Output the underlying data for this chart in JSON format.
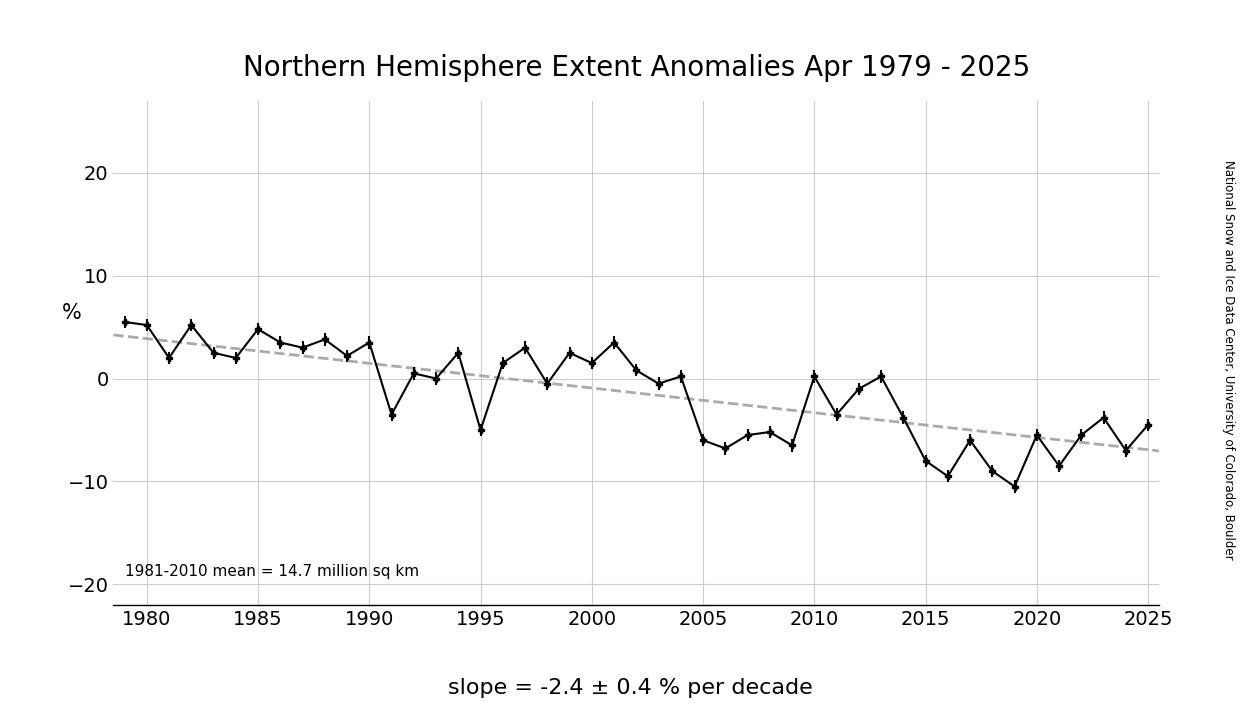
{
  "title": "Northern Hemisphere Extent Anomalies Apr 1979 - 2025",
  "ylabel": "%",
  "slope_text": "slope = -2.4 ± 0.4 % per decade",
  "mean_text": "1981-2010 mean = 14.7 million sq km",
  "side_label": "National Snow and Ice Data Center, University of Colorado, Boulder",
  "background_color": "#ffffff",
  "years": [
    1979,
    1980,
    1981,
    1982,
    1983,
    1984,
    1985,
    1986,
    1987,
    1988,
    1989,
    1990,
    1991,
    1992,
    1993,
    1994,
    1995,
    1996,
    1997,
    1998,
    1999,
    2000,
    2001,
    2002,
    2003,
    2004,
    2005,
    2006,
    2007,
    2008,
    2009,
    2010,
    2011,
    2012,
    2013,
    2014,
    2015,
    2016,
    2017,
    2018,
    2019,
    2020,
    2021,
    2022,
    2023,
    2024,
    2025
  ],
  "values": [
    5.5,
    5.2,
    2.0,
    5.2,
    2.5,
    2.0,
    4.8,
    3.5,
    3.0,
    3.8,
    2.2,
    3.5,
    -3.5,
    0.5,
    0.0,
    2.5,
    -5.0,
    1.5,
    3.0,
    -0.5,
    2.5,
    1.5,
    3.5,
    0.8,
    -0.5,
    0.2,
    -6.0,
    -6.8,
    -5.5,
    -5.2,
    -6.5,
    0.2,
    -3.5,
    -1.0,
    0.2,
    -3.8,
    -8.0,
    -9.5,
    -6.0,
    -9.0,
    -10.5,
    -5.5,
    -8.5,
    -5.5,
    -3.8,
    -7.0,
    -4.5
  ],
  "yerr": [
    0.6,
    0.6,
    0.6,
    0.6,
    0.6,
    0.6,
    0.6,
    0.6,
    0.6,
    0.6,
    0.6,
    0.6,
    0.6,
    0.6,
    0.6,
    0.6,
    0.6,
    0.6,
    0.6,
    0.6,
    0.6,
    0.6,
    0.6,
    0.6,
    0.6,
    0.6,
    0.6,
    0.6,
    0.6,
    0.6,
    0.6,
    0.6,
    0.6,
    0.6,
    0.6,
    0.6,
    0.6,
    0.6,
    0.6,
    0.6,
    0.6,
    0.6,
    0.6,
    0.6,
    0.6,
    0.6,
    0.6
  ],
  "line_color": "#000000",
  "trend_color": "#aaaaaa",
  "ylim": [
    -22,
    27
  ],
  "yticks": [
    -20,
    -10,
    0,
    10,
    20
  ],
  "xlim": [
    1978.5,
    2025.5
  ],
  "xticks": [
    1980,
    1985,
    1990,
    1995,
    2000,
    2005,
    2010,
    2015,
    2020,
    2025
  ],
  "slope_per_decade": -2.4
}
